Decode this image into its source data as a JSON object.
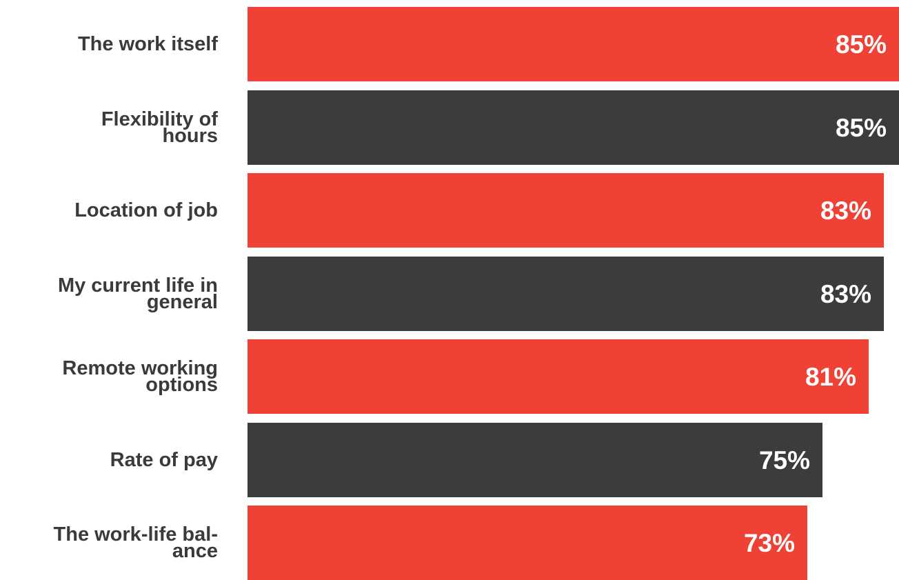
{
  "chart_data": {
    "type": "bar",
    "orientation": "horizontal",
    "categories": [
      "The work itself",
      "Flexibility of hours",
      "Location of job",
      "My current life in general",
      "Remote working options",
      "Rate of pay",
      "The work-life bal- ance"
    ],
    "display_labels": [
      [
        "The work itself"
      ],
      [
        "Flexibility of",
        "hours"
      ],
      [
        "Location of job"
      ],
      [
        "My current life in",
        "general"
      ],
      [
        "Remote working",
        "options"
      ],
      [
        "Rate of pay"
      ],
      [
        "The work-life bal-",
        "ance"
      ]
    ],
    "values": [
      85,
      85,
      83,
      83,
      81,
      75,
      73
    ],
    "value_labels": [
      "85%",
      "85%",
      "83%",
      "83%",
      "81%",
      "75%",
      "73%"
    ],
    "bar_colors": [
      "#ef4136",
      "#3c3c3c",
      "#ef4136",
      "#3c3c3c",
      "#ef4136",
      "#3c3c3c",
      "#ef4136"
    ],
    "xlim": [
      0,
      85
    ],
    "grid": false,
    "legend": "none"
  }
}
